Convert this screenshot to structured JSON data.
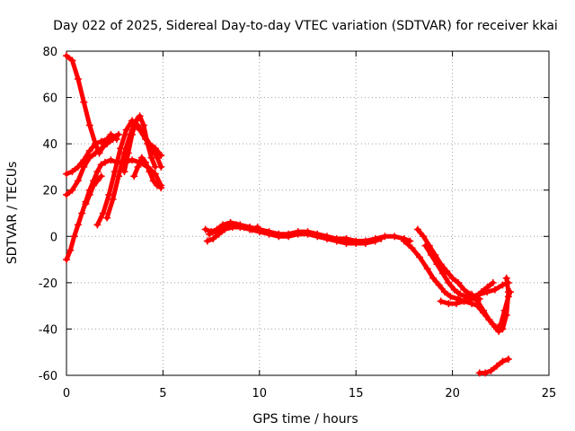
{
  "chart_data": {
    "type": "scatter",
    "title": "Day 022 of 2025, Sidereal Day-to-day VTEC variation (SDTVAR) for receiver kkai",
    "xlabel": "GPS time / hours",
    "ylabel": "SDTVAR / TECUs",
    "xlim": [
      0,
      25
    ],
    "ylim": [
      -60,
      80
    ],
    "x_ticks": [
      0,
      5,
      10,
      15,
      20,
      25
    ],
    "x_tick_labels": [
      "0",
      "5",
      "10",
      "15",
      "20",
      "25"
    ],
    "y_ticks": [
      -60,
      -40,
      -20,
      0,
      20,
      40,
      60,
      80
    ],
    "y_tick_labels": [
      "-60",
      "-40",
      "-20",
      "0",
      "20",
      "40",
      "60",
      "80"
    ],
    "grid": true,
    "marker": "+",
    "color": "#ff0000",
    "series": [
      {
        "name": "trace-1",
        "points": [
          [
            0.0,
            78
          ],
          [
            0.3,
            76
          ],
          [
            0.6,
            68
          ],
          [
            0.9,
            58
          ],
          [
            1.2,
            48
          ],
          [
            1.5,
            40
          ],
          [
            1.7,
            36
          ],
          [
            2.0,
            40
          ],
          [
            2.3,
            44
          ],
          [
            2.6,
            42
          ]
        ]
      },
      {
        "name": "trace-2",
        "points": [
          [
            0.0,
            -10
          ],
          [
            0.2,
            -6
          ],
          [
            0.4,
            0
          ],
          [
            0.6,
            5
          ],
          [
            0.8,
            10
          ],
          [
            1.0,
            15
          ],
          [
            1.2,
            20
          ],
          [
            1.4,
            24
          ],
          [
            1.6,
            28
          ],
          [
            1.8,
            31
          ],
          [
            2.0,
            32
          ],
          [
            2.3,
            33
          ],
          [
            2.6,
            32
          ],
          [
            3.0,
            32
          ],
          [
            3.4,
            33
          ],
          [
            3.8,
            32
          ],
          [
            4.2,
            30
          ],
          [
            4.6,
            27
          ],
          [
            4.9,
            22
          ]
        ]
      },
      {
        "name": "trace-3",
        "points": [
          [
            0.0,
            27
          ],
          [
            0.3,
            28
          ],
          [
            0.6,
            30
          ],
          [
            0.9,
            33
          ],
          [
            1.2,
            37
          ],
          [
            1.5,
            40
          ],
          [
            1.8,
            41
          ],
          [
            2.1,
            42
          ],
          [
            2.4,
            43
          ],
          [
            2.7,
            44
          ]
        ]
      },
      {
        "name": "trace-4",
        "points": [
          [
            0.0,
            18
          ],
          [
            0.3,
            20
          ],
          [
            0.6,
            24
          ],
          [
            0.9,
            30
          ],
          [
            1.2,
            34
          ],
          [
            1.5,
            36
          ],
          [
            1.8,
            38
          ],
          [
            2.1,
            40
          ],
          [
            2.4,
            42
          ]
        ]
      },
      {
        "name": "trace-5",
        "points": [
          [
            1.6,
            5
          ],
          [
            1.9,
            10
          ],
          [
            2.2,
            18
          ],
          [
            2.5,
            28
          ],
          [
            2.8,
            38
          ],
          [
            3.1,
            46
          ],
          [
            3.4,
            50
          ],
          [
            3.7,
            48
          ],
          [
            4.0,
            44
          ],
          [
            4.3,
            40
          ],
          [
            4.6,
            38
          ],
          [
            4.9,
            35
          ]
        ]
      },
      {
        "name": "trace-6",
        "points": [
          [
            2.1,
            8
          ],
          [
            2.4,
            16
          ],
          [
            2.7,
            26
          ],
          [
            3.0,
            36
          ],
          [
            3.3,
            44
          ],
          [
            3.5,
            48
          ],
          [
            3.8,
            46
          ],
          [
            4.1,
            42
          ],
          [
            4.4,
            38
          ],
          [
            4.7,
            34
          ],
          [
            4.9,
            30
          ]
        ]
      },
      {
        "name": "trace-7",
        "points": [
          [
            3.0,
            28
          ],
          [
            3.2,
            36
          ],
          [
            3.4,
            44
          ],
          [
            3.6,
            50
          ],
          [
            3.8,
            52
          ],
          [
            4.0,
            48
          ],
          [
            4.2,
            40
          ],
          [
            4.4,
            34
          ],
          [
            4.6,
            30
          ]
        ]
      },
      {
        "name": "trace-8",
        "points": [
          [
            1.0,
            14
          ],
          [
            1.2,
            18
          ],
          [
            1.4,
            22
          ],
          [
            1.6,
            24
          ],
          [
            1.8,
            26
          ]
        ]
      },
      {
        "name": "trace-9",
        "points": [
          [
            3.5,
            26
          ],
          [
            3.7,
            30
          ],
          [
            3.9,
            34
          ],
          [
            4.1,
            32
          ],
          [
            4.3,
            28
          ],
          [
            4.5,
            24
          ],
          [
            4.7,
            22
          ],
          [
            4.9,
            21
          ]
        ]
      },
      {
        "name": "trace-10",
        "points": [
          [
            7.2,
            3
          ],
          [
            7.5,
            2
          ],
          [
            7.8,
            3
          ],
          [
            8.1,
            5
          ],
          [
            8.5,
            6
          ],
          [
            9.0,
            5
          ],
          [
            9.5,
            4
          ],
          [
            10.0,
            3
          ],
          [
            10.5,
            2
          ],
          [
            11.0,
            1
          ],
          [
            11.5,
            1
          ],
          [
            12.0,
            2
          ],
          [
            12.5,
            2
          ],
          [
            13.0,
            1
          ],
          [
            13.5,
            0
          ],
          [
            14.0,
            -1
          ],
          [
            14.5,
            -1
          ],
          [
            15.0,
            -2
          ],
          [
            15.5,
            -2
          ],
          [
            16.0,
            -1
          ],
          [
            16.5,
            0
          ],
          [
            17.0,
            0
          ],
          [
            17.5,
            -1
          ],
          [
            17.8,
            -2
          ]
        ]
      },
      {
        "name": "trace-11",
        "points": [
          [
            7.3,
            -2
          ],
          [
            7.6,
            -1
          ],
          [
            7.9,
            1
          ],
          [
            8.2,
            3
          ],
          [
            8.6,
            4
          ],
          [
            9.0,
            4
          ],
          [
            9.5,
            3
          ],
          [
            10.0,
            2
          ],
          [
            10.5,
            1
          ],
          [
            11.0,
            0
          ],
          [
            11.5,
            0
          ],
          [
            12.0,
            1
          ],
          [
            12.5,
            1
          ],
          [
            13.0,
            0
          ],
          [
            13.5,
            -1
          ],
          [
            14.0,
            -2
          ],
          [
            14.5,
            -3
          ],
          [
            15.0,
            -3
          ],
          [
            15.5,
            -3
          ],
          [
            16.0,
            -2
          ],
          [
            16.3,
            -1
          ]
        ]
      },
      {
        "name": "trace-12",
        "points": [
          [
            7.4,
            1
          ],
          [
            7.7,
            2
          ],
          [
            8.0,
            4
          ],
          [
            8.4,
            5
          ],
          [
            8.8,
            5
          ],
          [
            9.2,
            4
          ],
          [
            9.6,
            3
          ],
          [
            9.9,
            4
          ]
        ]
      },
      {
        "name": "trace-13",
        "points": [
          [
            18.2,
            3
          ],
          [
            18.5,
            0
          ],
          [
            18.8,
            -4
          ],
          [
            19.1,
            -8
          ],
          [
            19.4,
            -12
          ],
          [
            19.7,
            -15
          ],
          [
            20.0,
            -18
          ],
          [
            20.3,
            -20
          ],
          [
            20.6,
            -23
          ],
          [
            20.9,
            -25
          ],
          [
            21.2,
            -26
          ],
          [
            21.5,
            -24
          ],
          [
            21.8,
            -22
          ],
          [
            22.1,
            -20
          ]
        ]
      },
      {
        "name": "trace-14",
        "points": [
          [
            17.5,
            -2
          ],
          [
            17.9,
            -5
          ],
          [
            18.3,
            -9
          ],
          [
            18.7,
            -14
          ],
          [
            19.0,
            -18
          ],
          [
            19.3,
            -21
          ],
          [
            19.6,
            -24
          ],
          [
            19.9,
            -26
          ],
          [
            20.3,
            -27
          ],
          [
            20.6,
            -28
          ],
          [
            21.0,
            -29
          ],
          [
            21.3,
            -30
          ],
          [
            21.6,
            -33
          ],
          [
            21.9,
            -36
          ],
          [
            22.2,
            -39
          ],
          [
            22.4,
            -41
          ],
          [
            22.6,
            -40
          ],
          [
            22.8,
            -34
          ],
          [
            22.9,
            -24
          ],
          [
            22.8,
            -18
          ]
        ]
      },
      {
        "name": "trace-15",
        "points": [
          [
            18.6,
            -4
          ],
          [
            18.9,
            -8
          ],
          [
            19.2,
            -12
          ],
          [
            19.5,
            -16
          ],
          [
            19.8,
            -20
          ],
          [
            20.1,
            -23
          ],
          [
            20.4,
            -25
          ],
          [
            20.7,
            -26
          ],
          [
            21.0,
            -26
          ],
          [
            21.4,
            -25
          ],
          [
            21.8,
            -24
          ],
          [
            22.2,
            -23
          ],
          [
            22.6,
            -21
          ],
          [
            22.9,
            -20
          ]
        ]
      },
      {
        "name": "trace-16",
        "points": [
          [
            19.4,
            -28
          ],
          [
            19.8,
            -29
          ],
          [
            20.2,
            -29
          ],
          [
            20.6,
            -28
          ],
          [
            21.0,
            -27
          ],
          [
            21.4,
            -27
          ]
        ]
      },
      {
        "name": "trace-17",
        "points": [
          [
            21.0,
            -25
          ],
          [
            21.3,
            -28
          ],
          [
            21.6,
            -32
          ],
          [
            21.9,
            -36
          ],
          [
            22.1,
            -38
          ],
          [
            22.3,
            -40
          ],
          [
            22.5,
            -38
          ],
          [
            22.7,
            -32
          ],
          [
            22.9,
            -26
          ],
          [
            23.0,
            -24
          ]
        ]
      },
      {
        "name": "trace-18",
        "points": [
          [
            21.4,
            -59
          ],
          [
            21.7,
            -59
          ],
          [
            22.0,
            -58
          ],
          [
            22.3,
            -56
          ],
          [
            22.6,
            -54
          ],
          [
            22.9,
            -53
          ]
        ]
      }
    ]
  }
}
